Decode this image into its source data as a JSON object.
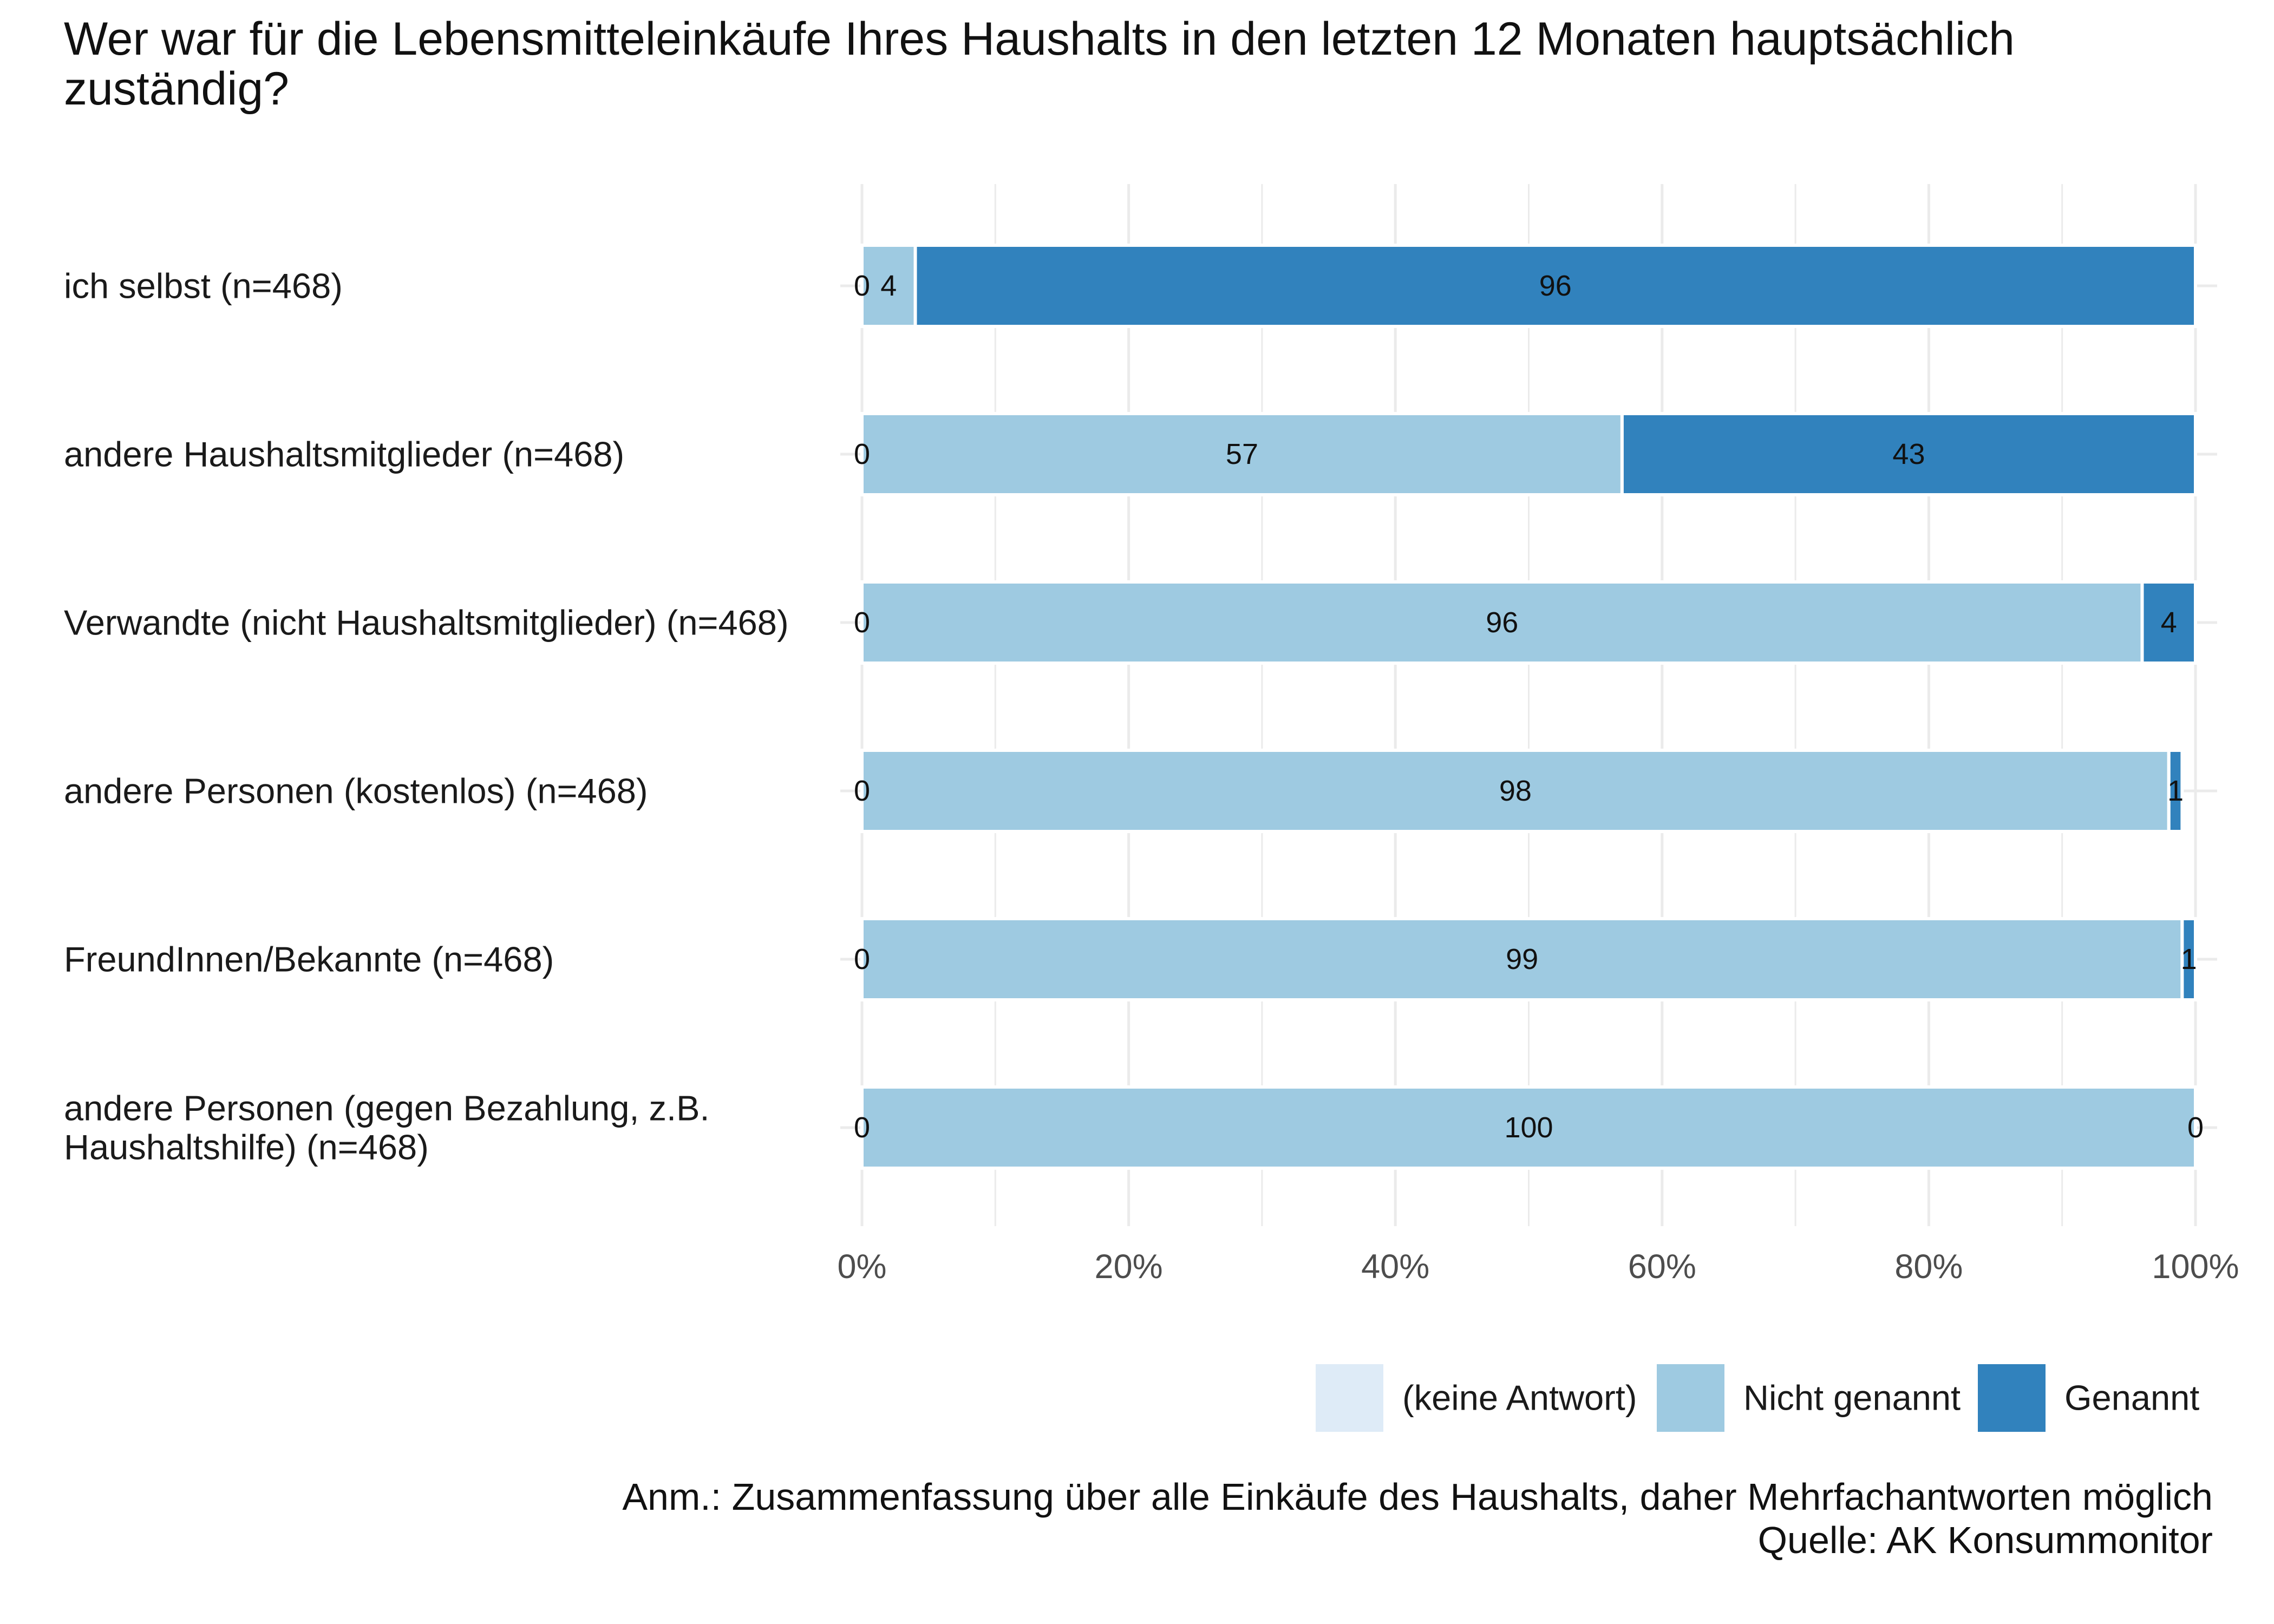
{
  "chart_data": {
    "type": "bar",
    "orientation": "horizontal",
    "stacked": true,
    "percent": true,
    "title": "Wer war für die Lebensmitteleinkäufe Ihres Haushalts in den letzten 12 Monaten hauptsächlich zuständig?",
    "categories": [
      [
        "ich selbst (n=468)"
      ],
      [
        "andere Haushaltsmitglieder (n=468)"
      ],
      [
        "Verwandte (nicht Haushaltsmitglieder) (n=468)"
      ],
      [
        "andere Personen (kostenlos) (n=468)"
      ],
      [
        "FreundInnen/Bekannte (n=468)"
      ],
      [
        "andere Personen (gegen Bezahlung, z.B.",
        "Haushaltshilfe) (n=468)"
      ]
    ],
    "series": [
      {
        "name": "(keine Antwort)",
        "color": "#deebf7",
        "values": [
          0,
          0,
          0,
          0,
          0,
          0
        ]
      },
      {
        "name": "Nicht genannt",
        "color": "#9ecae1",
        "values": [
          4,
          57,
          96,
          98,
          99,
          100
        ]
      },
      {
        "name": "Genannt",
        "color": "#3182bd",
        "values": [
          96,
          43,
          4,
          1,
          1,
          0
        ]
      }
    ],
    "x_axis": {
      "range": [
        0,
        100
      ],
      "ticks": [
        0,
        20,
        40,
        60,
        80,
        100
      ],
      "tick_labels": [
        "0%",
        "20%",
        "40%",
        "60%",
        "80%",
        "100%"
      ]
    },
    "grid": true,
    "legend_position": "bottom-right"
  },
  "note": {
    "line1": "Anm.: Zusammenfassung über alle Einkäufe des Haushalts, daher Mehrfachantworten möglich",
    "line2": "Quelle: AK Konsummonitor"
  }
}
